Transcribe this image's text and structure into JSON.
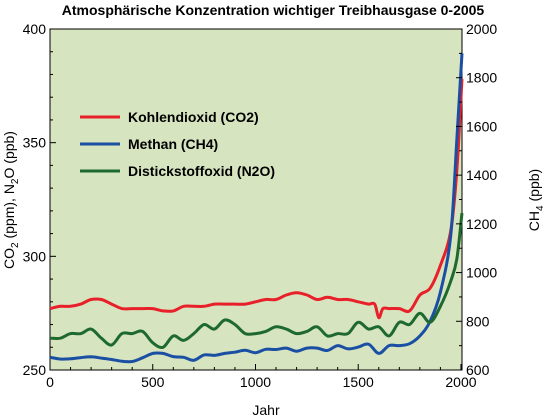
{
  "chart_data": {
    "type": "line",
    "title": "Atmosphärische Konzentration wichtiger Treibhausgase 0-2005",
    "xlabel": "Jahr",
    "ylabel_left": {
      "main": "CO",
      "sub1": "2",
      "mid": " (ppm), N",
      "sub2": "2",
      "tail": "O (ppb)"
    },
    "ylabel_right": {
      "main": "CH",
      "sub": "4",
      "tail": " (ppb)"
    },
    "xlim": [
      0,
      2005
    ],
    "ylim_left": [
      250,
      400
    ],
    "ylim_right": [
      600,
      2000
    ],
    "grid": false,
    "legend_position": "upper-left",
    "background_color": "#d6e4bf",
    "x_ticks": [
      "0",
      "500",
      "1000",
      "1500",
      "2000"
    ],
    "y_left_ticks": [
      "250",
      "300",
      "350",
      "400"
    ],
    "y_right_ticks": [
      "600",
      "800",
      "1000",
      "1200",
      "1400",
      "1600",
      "1800",
      "2000"
    ],
    "series": [
      {
        "name": "Kohlendioxid (CO2)",
        "axis": "left",
        "color": "#e8202a",
        "x": [
          0,
          50,
          100,
          150,
          200,
          250,
          300,
          350,
          400,
          450,
          500,
          550,
          600,
          650,
          700,
          750,
          800,
          850,
          900,
          950,
          1000,
          1050,
          1100,
          1150,
          1200,
          1250,
          1300,
          1350,
          1400,
          1450,
          1500,
          1550,
          1580,
          1600,
          1620,
          1650,
          1700,
          1750,
          1800,
          1850,
          1900,
          1950,
          1980,
          2005
        ],
        "y": [
          277,
          278,
          278,
          279,
          281,
          281,
          279,
          277,
          277,
          277,
          277,
          276,
          276,
          278,
          278,
          278,
          279,
          279,
          279,
          279,
          280,
          281,
          281,
          283,
          284,
          283,
          281,
          282,
          281,
          281,
          280,
          279,
          279,
          273,
          277,
          277,
          277,
          276,
          283,
          286,
          296,
          311,
          338,
          378
        ]
      },
      {
        "name": "Methan (CH4)",
        "axis": "right",
        "color": "#1a4fa3",
        "x": [
          0,
          50,
          100,
          150,
          200,
          250,
          300,
          350,
          400,
          450,
          500,
          550,
          600,
          650,
          700,
          750,
          800,
          850,
          900,
          950,
          1000,
          1050,
          1100,
          1150,
          1200,
          1250,
          1300,
          1350,
          1400,
          1450,
          1500,
          1550,
          1600,
          1650,
          1700,
          1750,
          1800,
          1850,
          1900,
          1950,
          1980,
          2005
        ],
        "y": [
          652,
          645,
          646,
          651,
          654,
          649,
          643,
          636,
          635,
          650,
          668,
          668,
          655,
          652,
          640,
          662,
          660,
          668,
          673,
          681,
          671,
          685,
          684,
          690,
          677,
          690,
          690,
          680,
          700,
          687,
          694,
          706,
          668,
          700,
          700,
          708,
          740,
          800,
          920,
          1150,
          1550,
          1900
        ]
      },
      {
        "name": "Distickstoffoxid (N2O)",
        "axis": "left",
        "color": "#1e6a2e",
        "x": [
          0,
          50,
          100,
          150,
          200,
          250,
          300,
          350,
          400,
          450,
          500,
          550,
          600,
          650,
          700,
          750,
          800,
          850,
          900,
          950,
          1000,
          1050,
          1100,
          1150,
          1200,
          1250,
          1300,
          1350,
          1400,
          1450,
          1500,
          1550,
          1600,
          1650,
          1700,
          1750,
          1800,
          1850,
          1900,
          1950,
          1980,
          2005
        ],
        "y": [
          264,
          264,
          266,
          266,
          268,
          264,
          261,
          266,
          266,
          267,
          262,
          260,
          265,
          263,
          266,
          270,
          268,
          272,
          270,
          266,
          266,
          267,
          269,
          268,
          266,
          267,
          269,
          265,
          266,
          266,
          271,
          268,
          269,
          265,
          271,
          270,
          275,
          271,
          278,
          289,
          299,
          319
        ]
      }
    ]
  }
}
